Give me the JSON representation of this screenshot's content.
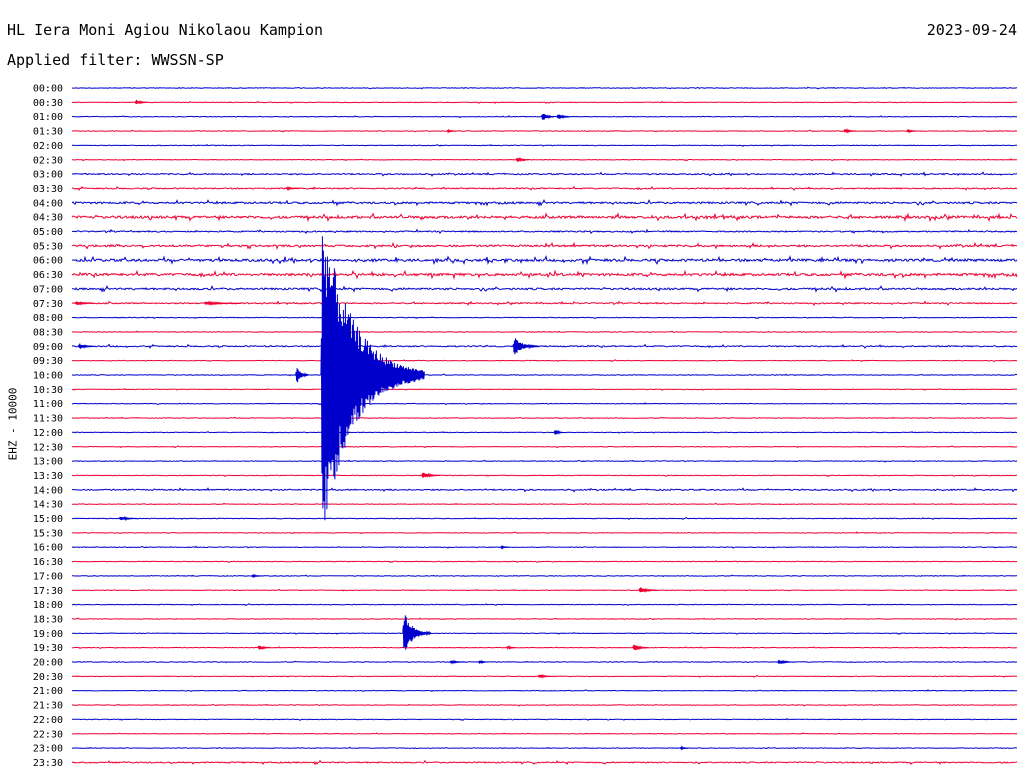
{
  "header": {
    "station": "HL Iera Moni Agiou Nikolaou Kampion",
    "filter": "Applied filter: WWSSN-SP",
    "date": "2023-09-24"
  },
  "channel_label": "EHZ - 10000",
  "colors": {
    "blue": "#0000cc",
    "red": "#ee0033",
    "text": "#000000",
    "background": "#ffffff"
  },
  "chart_data": {
    "type": "line",
    "title": "HL Iera Moni Agiou Nikolaou Kampion",
    "subtitle": "Applied filter: WWSSN-SP",
    "ylabel": "EHZ - 10000",
    "rows": [
      "00:00",
      "00:30",
      "01:00",
      "01:30",
      "02:00",
      "02:30",
      "03:00",
      "03:30",
      "04:00",
      "04:30",
      "05:00",
      "05:30",
      "06:00",
      "06:30",
      "07:00",
      "07:30",
      "08:00",
      "08:30",
      "09:00",
      "09:30",
      "10:00",
      "10:30",
      "11:00",
      "11:30",
      "12:00",
      "12:30",
      "13:00",
      "13:30",
      "14:00",
      "14:30",
      "15:00",
      "15:30",
      "16:00",
      "16:30",
      "17:00",
      "17:30",
      "18:00",
      "18:30",
      "19:00",
      "19:30",
      "20:00",
      "20:30",
      "21:00",
      "21:30",
      "22:00",
      "22:30",
      "23:00",
      "23:30"
    ],
    "row_colors": [
      "blue",
      "red"
    ],
    "row_span_minutes": 30,
    "noise_level": [
      1,
      1,
      1,
      1,
      1,
      1,
      2,
      2,
      3,
      4,
      2,
      3,
      4,
      4,
      3,
      2,
      1,
      1,
      2,
      1,
      1,
      1,
      1,
      1,
      1,
      1,
      1,
      1,
      2,
      1,
      1,
      1,
      1,
      1,
      1,
      1,
      1,
      1,
      1,
      1,
      1,
      1,
      1,
      1,
      1,
      1,
      1,
      2
    ],
    "events": [
      {
        "row": "00:30",
        "minute": 2.0,
        "amplitude": 4,
        "duration": 0.4
      },
      {
        "row": "01:00",
        "minute": 14.9,
        "amplitude": 7,
        "duration": 0.4
      },
      {
        "row": "01:00",
        "minute": 15.4,
        "amplitude": 5,
        "duration": 0.4
      },
      {
        "row": "01:30",
        "minute": 11.9,
        "amplitude": 2,
        "duration": 0.3
      },
      {
        "row": "01:30",
        "minute": 24.5,
        "amplitude": 3,
        "duration": 0.4
      },
      {
        "row": "01:30",
        "minute": 26.5,
        "amplitude": 3,
        "duration": 0.3
      },
      {
        "row": "02:30",
        "minute": 14.1,
        "amplitude": 4,
        "duration": 0.4
      },
      {
        "row": "03:30",
        "minute": 6.8,
        "amplitude": 2,
        "duration": 0.4
      },
      {
        "row": "07:30",
        "minute": 0.1,
        "amplitude": 3,
        "duration": 0.6
      },
      {
        "row": "07:30",
        "minute": 4.2,
        "amplitude": 2,
        "duration": 1.2
      },
      {
        "row": "09:00",
        "minute": 0.2,
        "amplitude": 4,
        "duration": 0.5
      },
      {
        "row": "09:00",
        "minute": 14.0,
        "amplitude": 12,
        "duration": 0.8
      },
      {
        "row": "10:00",
        "minute": 7.1,
        "amplitude": 14,
        "duration": 0.4
      },
      {
        "row": "10:00",
        "minute": 7.9,
        "amplitude": 170,
        "duration": 3.3
      },
      {
        "row": "12:00",
        "minute": 15.3,
        "amplitude": 5,
        "duration": 0.3
      },
      {
        "row": "13:30",
        "minute": 11.1,
        "amplitude": 4,
        "duration": 0.6
      },
      {
        "row": "15:00",
        "minute": 1.5,
        "amplitude": 3,
        "duration": 0.6
      },
      {
        "row": "16:00",
        "minute": 13.6,
        "amplitude": 2,
        "duration": 0.3
      },
      {
        "row": "17:00",
        "minute": 5.7,
        "amplitude": 2,
        "duration": 0.3
      },
      {
        "row": "17:30",
        "minute": 18.0,
        "amplitude": 4,
        "duration": 0.6
      },
      {
        "row": "19:00",
        "minute": 10.5,
        "amplitude": 26,
        "duration": 0.9
      },
      {
        "row": "19:30",
        "minute": 5.9,
        "amplitude": 4,
        "duration": 0.4
      },
      {
        "row": "19:30",
        "minute": 13.8,
        "amplitude": 3,
        "duration": 0.3
      },
      {
        "row": "19:30",
        "minute": 17.8,
        "amplitude": 5,
        "duration": 0.5
      },
      {
        "row": "20:00",
        "minute": 12.0,
        "amplitude": 2,
        "duration": 0.5
      },
      {
        "row": "20:00",
        "minute": 12.9,
        "amplitude": 3,
        "duration": 0.3
      },
      {
        "row": "20:00",
        "minute": 22.4,
        "amplitude": 3,
        "duration": 0.5
      },
      {
        "row": "20:30",
        "minute": 14.8,
        "amplitude": 3,
        "duration": 0.4
      },
      {
        "row": "23:00",
        "minute": 19.3,
        "amplitude": 2,
        "duration": 0.3
      }
    ]
  }
}
